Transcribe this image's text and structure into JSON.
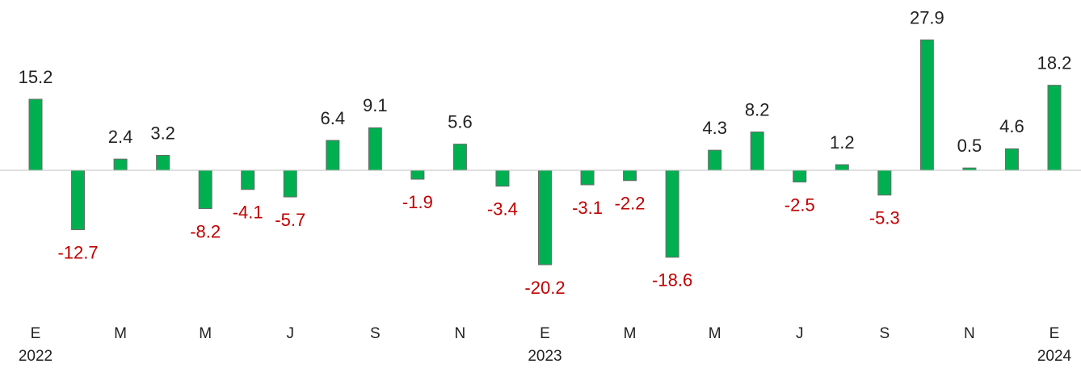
{
  "chart_data": {
    "type": "bar",
    "categories": [
      "E",
      null,
      "M",
      null,
      "M",
      null,
      "J",
      null,
      "S",
      null,
      "N",
      null,
      "E",
      null,
      "M",
      null,
      "M",
      null,
      "J",
      null,
      "S",
      null,
      "N",
      null,
      "E"
    ],
    "years": [
      "2022",
      null,
      null,
      null,
      null,
      null,
      null,
      null,
      null,
      null,
      null,
      null,
      "2023",
      null,
      null,
      null,
      null,
      null,
      null,
      null,
      null,
      null,
      null,
      null,
      "2024"
    ],
    "values": [
      15.2,
      -12.7,
      2.4,
      3.2,
      -8.2,
      -4.1,
      -5.7,
      6.4,
      9.1,
      -1.9,
      5.6,
      -3.4,
      -20.2,
      -3.1,
      -2.2,
      -18.6,
      4.3,
      8.2,
      -2.5,
      1.2,
      -5.3,
      27.9,
      0.5,
      4.6,
      18.2
    ],
    "color": "#00b050",
    "label_color_positive": "#222222",
    "label_color_negative": "#c00000",
    "ylim": [
      -25,
      30
    ]
  }
}
